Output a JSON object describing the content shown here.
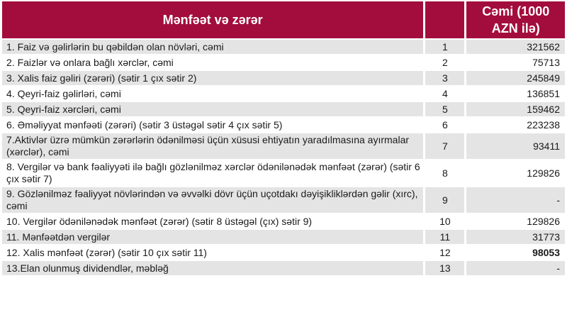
{
  "colors": {
    "header_bg": "#A30D3E",
    "alt_row_bg": "#E4E4E4",
    "header_text": "#FFFFFF"
  },
  "table": {
    "header": {
      "title": "Mənfəət və zərər",
      "num_label": "",
      "value_label": "Cəmi (1000 AZN ilə)"
    },
    "rows": [
      {
        "label": "1. Faiz və gəlirlərin bu qəbildən olan növləri, cəmi",
        "num": "1",
        "value": "321562",
        "bold": false
      },
      {
        "label": "2. Faizlər və onlara bağlı xərclər, cəmi",
        "num": "2",
        "value": "75713",
        "bold": false
      },
      {
        "label": "3. Xalis faiz gəliri (zərəri) (sətir 1 çıx sətir 2)",
        "num": "3",
        "value": "245849",
        "bold": false
      },
      {
        "label": "4. Qeyri-faiz gəlirləri, cəmi",
        "num": "4",
        "value": "136851",
        "bold": false
      },
      {
        "label": "5. Qeyri-faiz xərcləri, cəmi",
        "num": "5",
        "value": "159462",
        "bold": false
      },
      {
        "label": "6. Əməliyyat mənfəəti (zərəri) (sətir 3 üstəgəl sətir 4 çıx sətir 5)",
        "num": "6",
        "value": "223238",
        "bold": false
      },
      {
        "label": "7.Aktivlər üzrə mümkün zərərlərin ödənilməsi üçün xüsusi ehtiyatın yaradılmasına ayırmalar (xərclər), cəmi",
        "num": "7",
        "value": "93411",
        "bold": false
      },
      {
        "label": "8. Vergilər və bank fəaliyyəti ilə bağlı gözlənilməz xərclər ödənilənədək mənfəət (zərər) (sətir 6 çıx sətir 7)",
        "num": "8",
        "value": "129826",
        "bold": false
      },
      {
        "label": "9. Gözlənilməz fəaliyyət növlərindən və əvvəlki dövr üçün uçotdakı dəyişikliklərdən gəlir (xırc), cəmi",
        "num": "9",
        "value": "-",
        "bold": false
      },
      {
        "label": "10. Vergilər ödənilənədək mənfəət (zərər) (sətir 8 üstəgəl (çıx) sətir 9)",
        "num": "10",
        "value": "129826",
        "bold": false
      },
      {
        "label": "11. Mənfəətdən vergilər",
        "num": "11",
        "value": "31773",
        "bold": false
      },
      {
        "label": "12. Xalis mənfəət (zərər) (sətir 10 çıx sətir 11)",
        "num": "12",
        "value": "98053",
        "bold": true
      },
      {
        "label": "13.Elan olunmuş dividendlər, məbləğ",
        "num": "13",
        "value": "-",
        "bold": false
      }
    ]
  }
}
